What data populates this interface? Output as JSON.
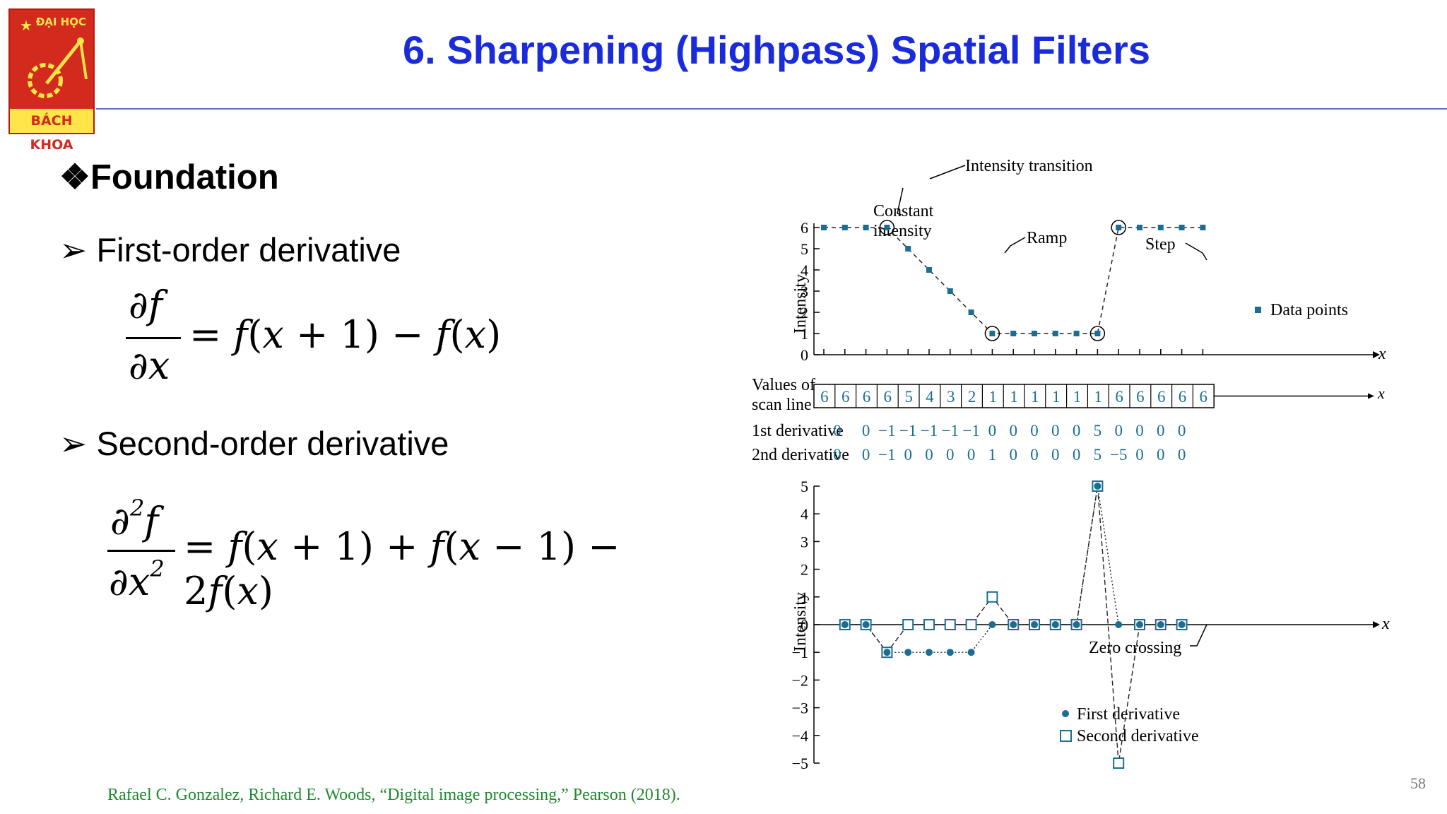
{
  "logo": {
    "top_text": "ĐẠI HỌC",
    "bottom_text": "BÁCH KHOA"
  },
  "slide": {
    "title": "6. Sharpening (Highpass) Spatial Filters",
    "heading": "Foundation",
    "first_order": {
      "label": "First-order derivative",
      "equation": "∂f/∂x = f(x + 1) − f(x)"
    },
    "second_order": {
      "label": "Second-order derivative",
      "equation": "∂²f/∂x² = f(x + 1) + f(x − 1) − 2f(x)"
    },
    "citation": "Rafael C. Gonzalez, Richard E. Woods, “Digital image processing,” Pearson (2018).",
    "page_number": "58"
  },
  "chart_data": [
    {
      "type": "scatter",
      "title": "",
      "xlabel": "x",
      "ylabel": "Intensity",
      "ylim": [
        0,
        6
      ],
      "yticks": [
        0,
        1,
        2,
        3,
        4,
        5,
        6
      ],
      "series": [
        {
          "name": "Data points",
          "values": [
            6,
            6,
            6,
            6,
            5,
            4,
            3,
            2,
            1,
            1,
            1,
            1,
            1,
            1,
            6,
            6,
            6,
            6,
            6
          ]
        }
      ],
      "circled_indices": [
        3,
        8,
        13,
        14
      ],
      "annotations": [
        "Intensity transition",
        "Constant intensity",
        "Ramp",
        "Step"
      ],
      "legend": "right"
    },
    {
      "type": "table",
      "row_labels": [
        "Values of scan line",
        "1st derivative",
        "2nd derivative"
      ],
      "axis_label": "x",
      "scan_line": [
        6,
        6,
        6,
        6,
        5,
        4,
        3,
        2,
        1,
        1,
        1,
        1,
        1,
        1,
        6,
        6,
        6,
        6,
        6
      ],
      "first_derivative": [
        "0",
        "0",
        "−1",
        "−1",
        "−1",
        "−1",
        "−1",
        "0",
        "0",
        "0",
        "0",
        "0",
        "5",
        "0",
        "0",
        "0",
        "0"
      ],
      "second_derivative": [
        "0",
        "0",
        "−1",
        "0",
        "0",
        "0",
        "0",
        "1",
        "0",
        "0",
        "0",
        "0",
        "5",
        "−5",
        "0",
        "0",
        "0"
      ]
    },
    {
      "type": "line",
      "title": "",
      "xlabel": "x",
      "ylabel": "Intensity",
      "ylim": [
        -5,
        5
      ],
      "yticks": [
        -5,
        -4,
        -3,
        -2,
        -1,
        0,
        1,
        2,
        3,
        4,
        5
      ],
      "series": [
        {
          "name": "First derivative",
          "values": [
            0,
            0,
            -1,
            -1,
            -1,
            -1,
            -1,
            0,
            0,
            0,
            0,
            0,
            5,
            0,
            0,
            0,
            0
          ]
        },
        {
          "name": "Second derivative",
          "values": [
            0,
            0,
            -1,
            0,
            0,
            0,
            0,
            1,
            0,
            0,
            0,
            0,
            5,
            -5,
            0,
            0,
            0
          ]
        }
      ],
      "annotations": [
        "Zero crossing"
      ],
      "legend": "bottom"
    }
  ]
}
